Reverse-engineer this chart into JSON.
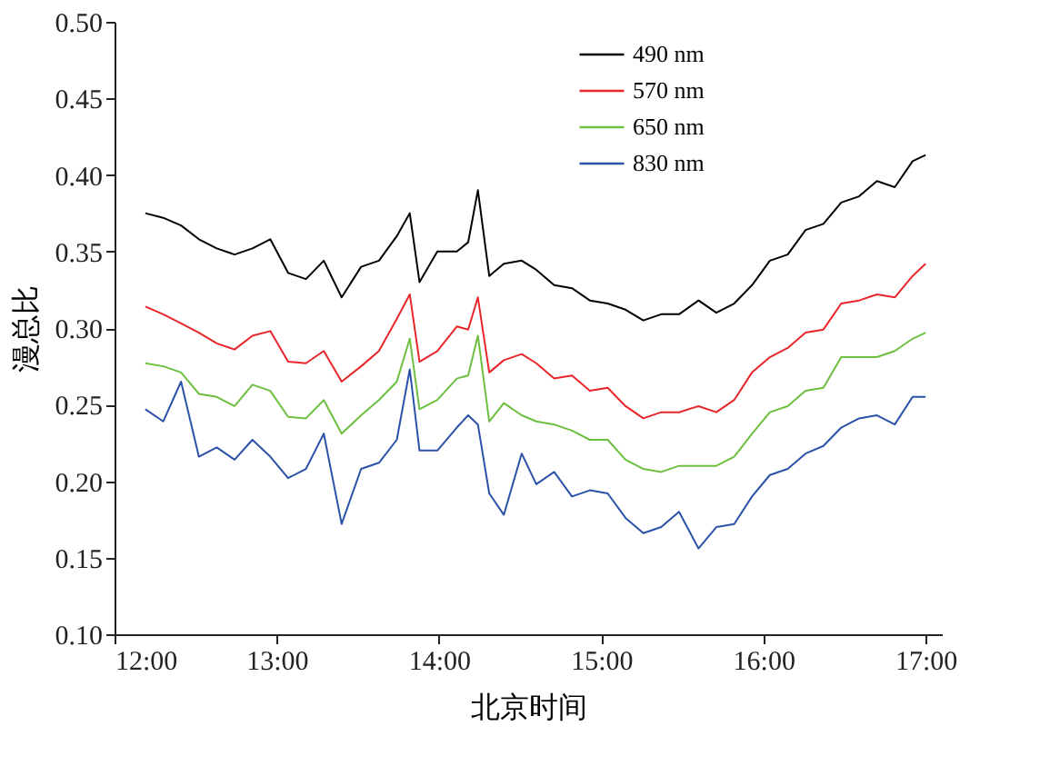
{
  "chart_data": {
    "type": "line",
    "xlabel": "北京时间",
    "ylabel": "漫总比",
    "x": [
      12.19,
      12.3,
      12.41,
      12.52,
      12.63,
      12.74,
      12.85,
      12.96,
      13.07,
      13.18,
      13.29,
      13.4,
      13.52,
      13.63,
      13.74,
      13.82,
      13.88,
      13.99,
      14.11,
      14.18,
      14.24,
      14.31,
      14.4,
      14.51,
      14.6,
      14.71,
      14.82,
      14.93,
      15.04,
      15.15,
      15.26,
      15.37,
      15.48,
      15.6,
      15.71,
      15.82,
      15.93,
      16.04,
      16.15,
      16.26,
      16.37,
      16.48,
      16.59,
      16.7,
      16.81,
      16.92,
      17.0
    ],
    "series": [
      {
        "name": "490 nm",
        "color": "#000000",
        "values": [
          0.375,
          0.372,
          0.367,
          0.358,
          0.352,
          0.348,
          0.352,
          0.358,
          0.336,
          0.332,
          0.344,
          0.32,
          0.34,
          0.344,
          0.36,
          0.375,
          0.33,
          0.35,
          0.35,
          0.356,
          0.39,
          0.334,
          0.342,
          0.344,
          0.338,
          0.328,
          0.326,
          0.318,
          0.316,
          0.312,
          0.305,
          0.309,
          0.309,
          0.318,
          0.31,
          0.316,
          0.328,
          0.344,
          0.348,
          0.364,
          0.368,
          0.382,
          0.386,
          0.396,
          0.392,
          0.409,
          0.413
        ]
      },
      {
        "name": "570 nm",
        "color": "#e8262a",
        "values": [
          0.314,
          0.309,
          0.303,
          0.297,
          0.29,
          0.286,
          0.295,
          0.298,
          0.278,
          0.277,
          0.285,
          0.265,
          0.275,
          0.285,
          0.306,
          0.322,
          0.278,
          0.285,
          0.301,
          0.299,
          0.32,
          0.271,
          0.279,
          0.283,
          0.277,
          0.267,
          0.269,
          0.259,
          0.261,
          0.249,
          0.241,
          0.245,
          0.245,
          0.249,
          0.245,
          0.253,
          0.271,
          0.281,
          0.287,
          0.297,
          0.299,
          0.316,
          0.318,
          0.322,
          0.32,
          0.334,
          0.342
        ]
      },
      {
        "name": "650 nm",
        "color": "#6cbf3f",
        "values": [
          0.277,
          0.275,
          0.271,
          0.257,
          0.255,
          0.249,
          0.263,
          0.259,
          0.242,
          0.241,
          0.253,
          0.231,
          0.243,
          0.253,
          0.265,
          0.293,
          0.247,
          0.253,
          0.267,
          0.269,
          0.295,
          0.239,
          0.251,
          0.243,
          0.239,
          0.237,
          0.233,
          0.227,
          0.227,
          0.214,
          0.208,
          0.206,
          0.21,
          0.21,
          0.21,
          0.216,
          0.231,
          0.245,
          0.249,
          0.259,
          0.261,
          0.281,
          0.281,
          0.281,
          0.285,
          0.293,
          0.297
        ]
      },
      {
        "name": "830 nm",
        "color": "#2a52a8",
        "values": [
          0.247,
          0.239,
          0.265,
          0.216,
          0.222,
          0.214,
          0.227,
          0.216,
          0.202,
          0.208,
          0.231,
          0.172,
          0.208,
          0.212,
          0.227,
          0.273,
          0.22,
          0.22,
          0.235,
          0.243,
          0.237,
          0.192,
          0.178,
          0.218,
          0.198,
          0.206,
          0.19,
          0.194,
          0.192,
          0.176,
          0.166,
          0.17,
          0.18,
          0.156,
          0.17,
          0.172,
          0.19,
          0.204,
          0.208,
          0.218,
          0.223,
          0.235,
          0.241,
          0.243,
          0.237,
          0.255,
          0.255
        ]
      }
    ],
    "xlim": [
      12,
      17.1
    ],
    "xticks": [
      {
        "value": 12,
        "label": "12:00"
      },
      {
        "value": 13,
        "label": "13:00"
      },
      {
        "value": 14,
        "label": "14:00"
      },
      {
        "value": 15,
        "label": "15:00"
      },
      {
        "value": 16,
        "label": "16:00"
      },
      {
        "value": 17,
        "label": "17:00"
      }
    ],
    "ylim": [
      0.1,
      0.5
    ],
    "yticks": [
      {
        "value": 0.1,
        "label": "0.10"
      },
      {
        "value": 0.15,
        "label": "0.15"
      },
      {
        "value": 0.2,
        "label": "0.20"
      },
      {
        "value": 0.25,
        "label": "0.25"
      },
      {
        "value": 0.3,
        "label": "0.30"
      },
      {
        "value": 0.35,
        "label": "0.35"
      },
      {
        "value": 0.4,
        "label": "0.40"
      },
      {
        "value": 0.45,
        "label": "0.45"
      },
      {
        "value": 0.5,
        "label": "0.50"
      }
    ],
    "grid": false,
    "legend": "top right",
    "marker": "none",
    "line_style": "solid"
  }
}
